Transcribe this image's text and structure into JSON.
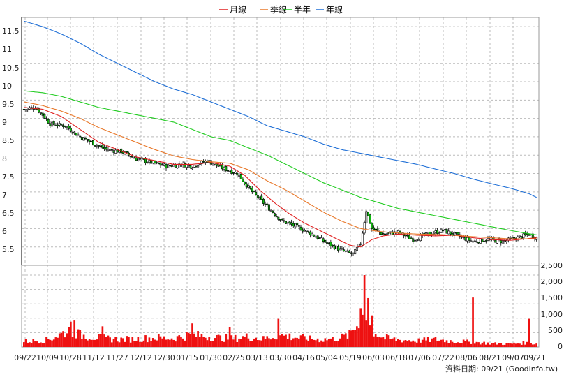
{
  "chart_data": [
    {
      "type": "candlestick",
      "panel": "price",
      "legend": [
        {
          "name": "月線",
          "color": "#e02020"
        },
        {
          "name": "季線",
          "color": "#e8782a"
        },
        {
          "name": "半年",
          "color": "#22cc22"
        },
        {
          "name": "年線",
          "color": "#1f6fd6"
        }
      ],
      "ylim": [
        5.0,
        11.75
      ],
      "yticks": [
        "11.5",
        "11",
        "10.5",
        "10",
        "9.5",
        "9",
        "8.5",
        "8",
        "7.5",
        "7",
        "6.5",
        "6",
        "5.5"
      ],
      "xticks": [
        "09/22",
        "10/09",
        "10/28",
        "11/12",
        "11/27",
        "12/12",
        "12/30",
        "01/15",
        "01/30",
        "02/25",
        "03/13",
        "03/30",
        "04/16",
        "05/04",
        "05/19",
        "06/03",
        "06/18",
        "07/06",
        "07/22",
        "08/06",
        "08/21",
        "09/07",
        "09/21"
      ],
      "close_anchors": [
        [
          0,
          9.25
        ],
        [
          6,
          9.3
        ],
        [
          10,
          9.1
        ],
        [
          14,
          8.85
        ],
        [
          22,
          8.8
        ],
        [
          30,
          8.5
        ],
        [
          38,
          8.3
        ],
        [
          44,
          8.15
        ],
        [
          52,
          8.1
        ],
        [
          60,
          7.9
        ],
        [
          68,
          7.8
        ],
        [
          76,
          7.7
        ],
        [
          84,
          7.75
        ],
        [
          90,
          7.7
        ],
        [
          98,
          7.85
        ],
        [
          106,
          7.65
        ],
        [
          114,
          7.5
        ],
        [
          122,
          7.0
        ],
        [
          130,
          6.6
        ],
        [
          138,
          6.2
        ],
        [
          146,
          6.05
        ],
        [
          154,
          5.85
        ],
        [
          162,
          5.6
        ],
        [
          170,
          5.4
        ],
        [
          176,
          5.3
        ],
        [
          180,
          5.6
        ],
        [
          183,
          6.5
        ],
        [
          186,
          6.0
        ],
        [
          192,
          5.85
        ],
        [
          200,
          5.9
        ],
        [
          208,
          5.7
        ],
        [
          216,
          5.85
        ],
        [
          224,
          5.95
        ],
        [
          232,
          5.8
        ],
        [
          240,
          5.65
        ],
        [
          248,
          5.7
        ],
        [
          256,
          5.65
        ],
        [
          264,
          5.75
        ],
        [
          270,
          5.85
        ],
        [
          274,
          5.75
        ]
      ],
      "ma_month": [
        [
          0,
          9.3
        ],
        [
          10,
          9.25
        ],
        [
          20,
          9.05
        ],
        [
          30,
          8.7
        ],
        [
          40,
          8.35
        ],
        [
          50,
          8.15
        ],
        [
          60,
          7.95
        ],
        [
          70,
          7.85
        ],
        [
          80,
          7.75
        ],
        [
          90,
          7.75
        ],
        [
          100,
          7.8
        ],
        [
          110,
          7.7
        ],
        [
          118,
          7.45
        ],
        [
          126,
          7.05
        ],
        [
          134,
          6.7
        ],
        [
          142,
          6.4
        ],
        [
          150,
          6.15
        ],
        [
          158,
          5.95
        ],
        [
          166,
          5.75
        ],
        [
          174,
          5.55
        ],
        [
          180,
          5.5
        ],
        [
          186,
          5.7
        ],
        [
          192,
          5.8
        ],
        [
          200,
          5.85
        ],
        [
          210,
          5.82
        ],
        [
          220,
          5.8
        ],
        [
          230,
          5.82
        ],
        [
          240,
          5.75
        ],
        [
          250,
          5.7
        ],
        [
          260,
          5.68
        ],
        [
          274,
          5.75
        ]
      ],
      "ma_quarter": [
        [
          0,
          9.45
        ],
        [
          10,
          9.35
        ],
        [
          20,
          9.2
        ],
        [
          30,
          9.0
        ],
        [
          40,
          8.75
        ],
        [
          50,
          8.55
        ],
        [
          60,
          8.35
        ],
        [
          70,
          8.15
        ],
        [
          80,
          7.98
        ],
        [
          90,
          7.88
        ],
        [
          100,
          7.82
        ],
        [
          110,
          7.78
        ],
        [
          120,
          7.6
        ],
        [
          130,
          7.3
        ],
        [
          140,
          7.05
        ],
        [
          150,
          6.75
        ],
        [
          160,
          6.45
        ],
        [
          170,
          6.2
        ],
        [
          180,
          6.0
        ],
        [
          190,
          5.92
        ],
        [
          200,
          5.88
        ],
        [
          210,
          5.85
        ],
        [
          220,
          5.84
        ],
        [
          230,
          5.82
        ],
        [
          240,
          5.78
        ],
        [
          250,
          5.75
        ],
        [
          260,
          5.72
        ],
        [
          274,
          5.72
        ]
      ],
      "ma_half_year": [
        [
          0,
          9.75
        ],
        [
          10,
          9.7
        ],
        [
          20,
          9.6
        ],
        [
          30,
          9.45
        ],
        [
          40,
          9.3
        ],
        [
          50,
          9.2
        ],
        [
          60,
          9.1
        ],
        [
          70,
          9.0
        ],
        [
          80,
          8.9
        ],
        [
          90,
          8.7
        ],
        [
          100,
          8.5
        ],
        [
          110,
          8.4
        ],
        [
          120,
          8.2
        ],
        [
          130,
          8.0
        ],
        [
          140,
          7.75
        ],
        [
          150,
          7.5
        ],
        [
          160,
          7.25
        ],
        [
          170,
          7.05
        ],
        [
          180,
          6.85
        ],
        [
          190,
          6.7
        ],
        [
          200,
          6.55
        ],
        [
          210,
          6.45
        ],
        [
          220,
          6.35
        ],
        [
          230,
          6.25
        ],
        [
          240,
          6.15
        ],
        [
          250,
          6.05
        ],
        [
          260,
          5.95
        ],
        [
          270,
          5.86
        ],
        [
          274,
          5.83
        ]
      ],
      "ma_year": [
        [
          0,
          11.65
        ],
        [
          10,
          11.5
        ],
        [
          20,
          11.3
        ],
        [
          30,
          11.05
        ],
        [
          40,
          10.75
        ],
        [
          50,
          10.5
        ],
        [
          60,
          10.25
        ],
        [
          70,
          10.0
        ],
        [
          80,
          9.8
        ],
        [
          90,
          9.65
        ],
        [
          100,
          9.45
        ],
        [
          110,
          9.25
        ],
        [
          120,
          9.05
        ],
        [
          130,
          8.8
        ],
        [
          140,
          8.65
        ],
        [
          150,
          8.5
        ],
        [
          160,
          8.3
        ],
        [
          170,
          8.15
        ],
        [
          180,
          8.05
        ],
        [
          190,
          7.95
        ],
        [
          200,
          7.85
        ],
        [
          210,
          7.75
        ],
        [
          220,
          7.62
        ],
        [
          230,
          7.5
        ],
        [
          240,
          7.35
        ],
        [
          250,
          7.22
        ],
        [
          260,
          7.1
        ],
        [
          270,
          6.95
        ],
        [
          274,
          6.85
        ]
      ]
    },
    {
      "type": "bar",
      "panel": "volume",
      "color": "#ee1111",
      "ylim": [
        0,
        2500
      ],
      "yticks": [
        "2,500",
        "2,000",
        "1,500",
        "1,000",
        "500",
        "0"
      ],
      "volume_anchors": [
        [
          0,
          200
        ],
        [
          10,
          220
        ],
        [
          14,
          280
        ],
        [
          20,
          450
        ],
        [
          25,
          620
        ],
        [
          30,
          420
        ],
        [
          40,
          320
        ],
        [
          50,
          260
        ],
        [
          60,
          280
        ],
        [
          70,
          320
        ],
        [
          80,
          300
        ],
        [
          88,
          420
        ],
        [
          96,
          380
        ],
        [
          104,
          320
        ],
        [
          112,
          290
        ],
        [
          120,
          360
        ],
        [
          128,
          280
        ],
        [
          136,
          420
        ],
        [
          144,
          350
        ],
        [
          152,
          280
        ],
        [
          160,
          260
        ],
        [
          168,
          300
        ],
        [
          174,
          420
        ],
        [
          178,
          780
        ],
        [
          181,
          1400
        ],
        [
          183,
          900
        ],
        [
          186,
          600
        ],
        [
          192,
          320
        ],
        [
          200,
          250
        ],
        [
          210,
          220
        ],
        [
          220,
          260
        ],
        [
          230,
          200
        ],
        [
          240,
          170
        ],
        [
          250,
          120
        ],
        [
          260,
          110
        ],
        [
          268,
          140
        ],
        [
          274,
          120
        ]
      ],
      "volume_spikes": [
        [
          25,
          880
        ],
        [
          27,
          920
        ],
        [
          42,
          720
        ],
        [
          90,
          820
        ],
        [
          110,
          680
        ],
        [
          136,
          980
        ],
        [
          180,
          1350
        ],
        [
          182,
          2500
        ],
        [
          184,
          1700
        ],
        [
          186,
          1100
        ],
        [
          240,
          1720
        ],
        [
          270,
          980
        ]
      ]
    }
  ],
  "source_text": "資料日期: 09/21  (Goodinfo.tw)"
}
